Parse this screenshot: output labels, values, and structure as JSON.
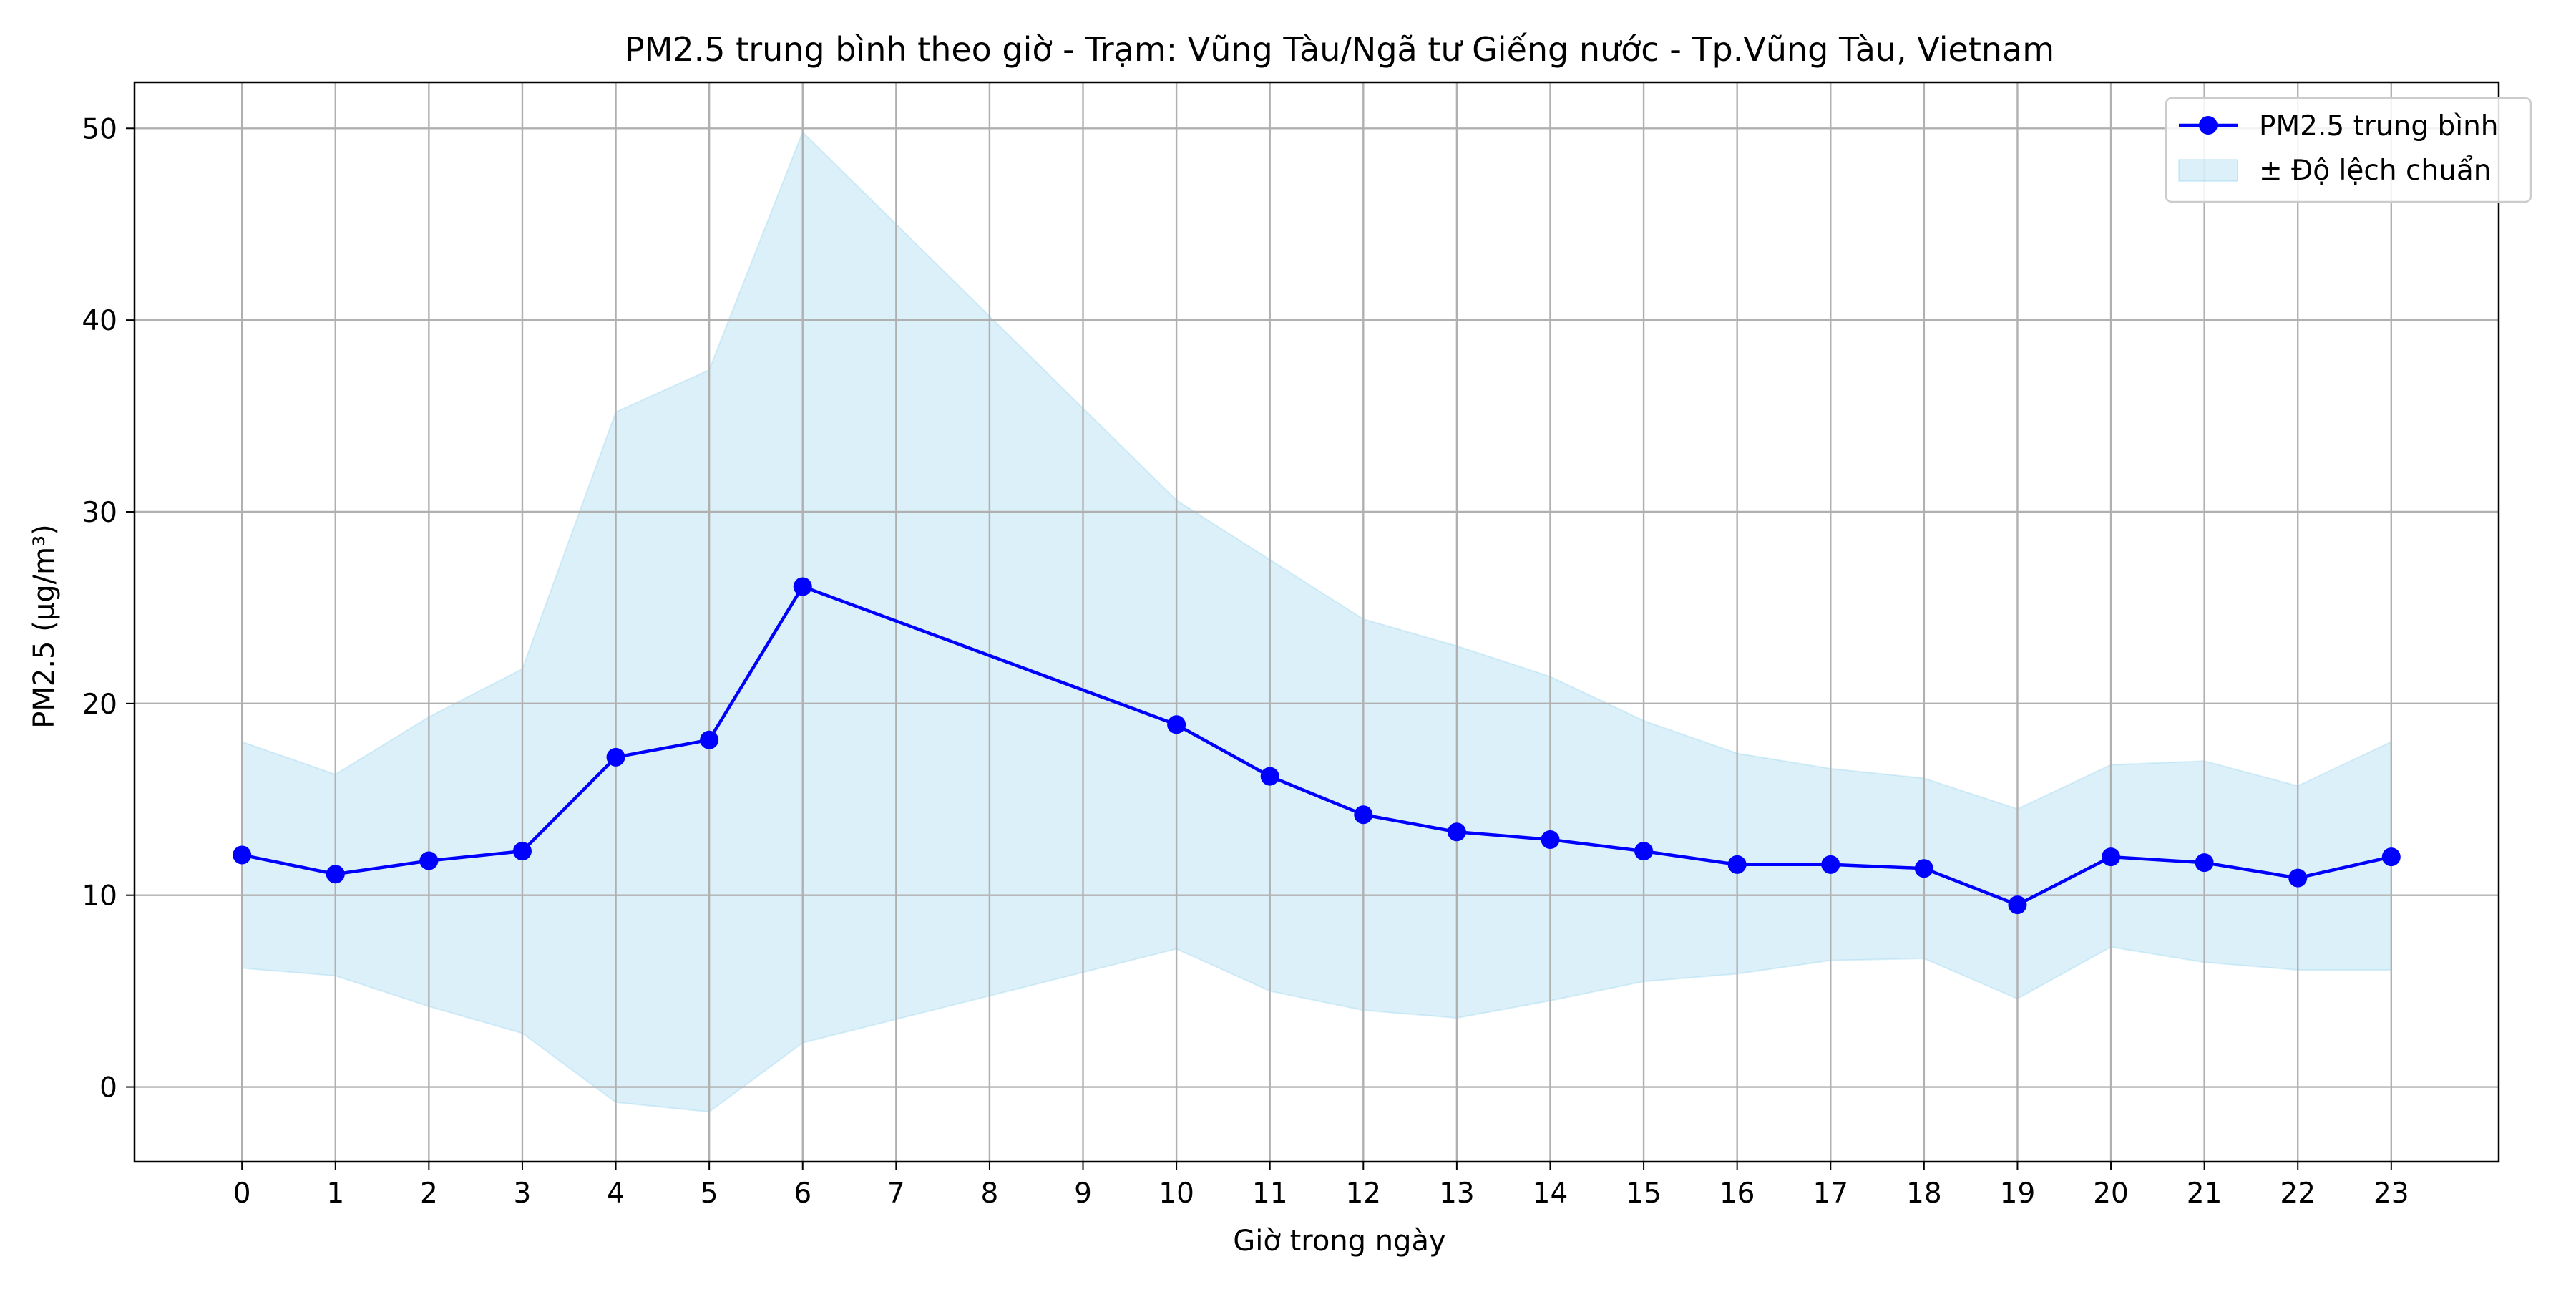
{
  "chart_data": {
    "type": "line",
    "title": "PM2.5 trung bình theo giờ - Trạm: Vũng Tàu/Ngã tư Giếng nước - Tp.Vũng Tàu, Vietnam",
    "xlabel": "Giờ trong ngày",
    "ylabel": "PM2.5 (µg/m³)",
    "xlim": [
      -1.15,
      24.15
    ],
    "ylim": [
      -3.9,
      52.4
    ],
    "x_ticks": [
      0,
      1,
      2,
      3,
      4,
      5,
      6,
      7,
      8,
      9,
      10,
      11,
      12,
      13,
      14,
      15,
      16,
      17,
      18,
      19,
      20,
      21,
      22,
      23
    ],
    "y_ticks": [
      0,
      10,
      20,
      30,
      40,
      50
    ],
    "grid": true,
    "legend_position": "top-right",
    "series": [
      {
        "name": "PM2.5 trung bình",
        "color": "#0000ff",
        "marker": "circle",
        "x": [
          0,
          1,
          2,
          3,
          4,
          5,
          6,
          10,
          11,
          12,
          13,
          14,
          15,
          16,
          17,
          18,
          19,
          20,
          21,
          22,
          23
        ],
        "values": [
          12.1,
          11.1,
          11.8,
          12.3,
          17.2,
          18.1,
          26.1,
          18.9,
          16.2,
          14.2,
          13.3,
          12.9,
          12.3,
          11.6,
          11.6,
          11.4,
          9.5,
          12.0,
          11.7,
          10.9,
          12.0
        ]
      }
    ],
    "band": {
      "name": "± Độ lệch chuẩn",
      "color": "#87ceeb",
      "x": [
        0,
        1,
        2,
        3,
        4,
        5,
        6,
        10,
        11,
        12,
        13,
        14,
        15,
        16,
        17,
        18,
        19,
        20,
        21,
        22,
        23
      ],
      "upper": [
        18.0,
        16.3,
        19.3,
        21.8,
        35.2,
        37.4,
        49.8,
        30.6,
        27.5,
        24.4,
        23.0,
        21.4,
        19.1,
        17.4,
        16.6,
        16.1,
        14.5,
        16.8,
        17.0,
        15.7,
        18.0
      ],
      "lower": [
        6.2,
        5.8,
        4.2,
        2.8,
        -0.8,
        -1.3,
        2.3,
        7.2,
        5.0,
        4.0,
        3.6,
        4.5,
        5.5,
        5.9,
        6.6,
        6.7,
        4.6,
        7.3,
        6.5,
        6.1,
        6.1
      ]
    }
  }
}
